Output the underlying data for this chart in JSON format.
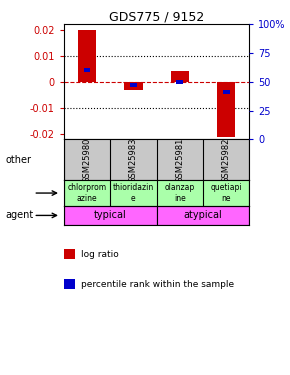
{
  "title": "GDS775 / 9152",
  "samples": [
    "GSM25980",
    "GSM25983",
    "GSM25981",
    "GSM25982"
  ],
  "log_ratios": [
    0.02,
    -0.003,
    0.004,
    -0.021
  ],
  "percentile_ranks": [
    0.6,
    0.47,
    0.495,
    0.41
  ],
  "agents": [
    "chlorprom\nazine",
    "thioridazin\ne",
    "olanzap\nine",
    "quetiapi\nne"
  ],
  "typical_label": "typical",
  "atypical_label": "atypical",
  "agent_color": "#aaffaa",
  "typical_color": "#ff66ff",
  "bar_color_log": "#cc0000",
  "bar_color_pct": "#0000cc",
  "ylim": [
    -0.022,
    0.022
  ],
  "yticks_left": [
    -0.02,
    -0.01,
    0.0,
    0.01,
    0.02
  ],
  "yticks_right_pct": [
    0,
    25,
    50,
    75,
    100
  ],
  "sample_bg": "#c8c8c8",
  "bar_width": 0.4,
  "pct_bar_width": 0.15
}
